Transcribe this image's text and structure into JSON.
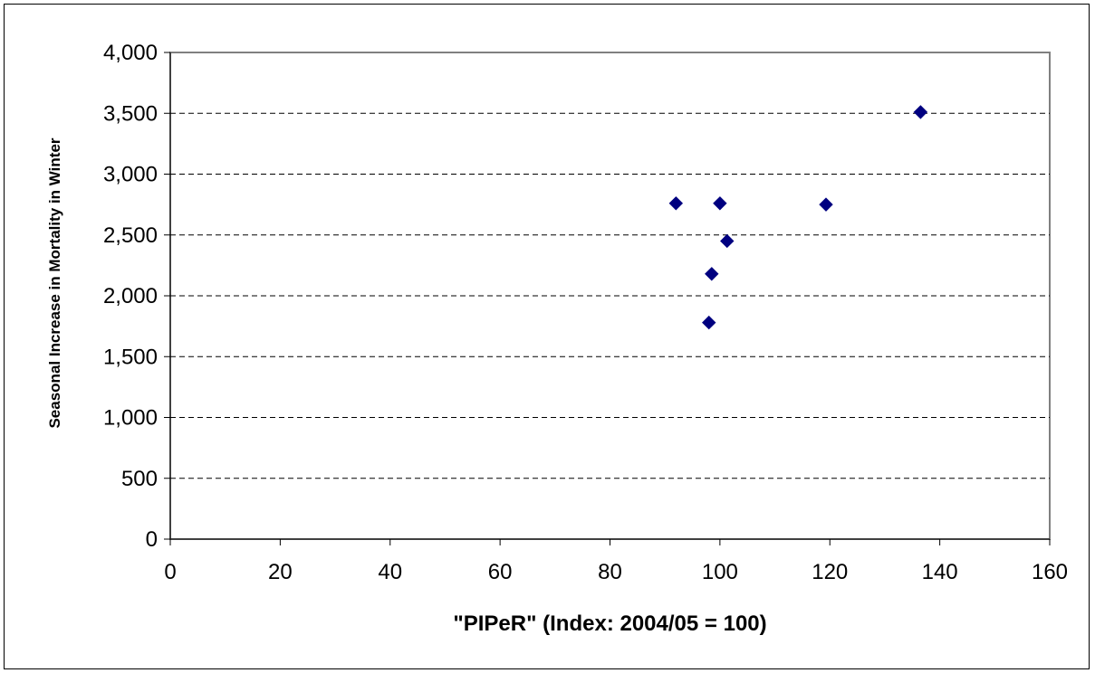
{
  "chart_data": {
    "type": "scatter",
    "title": "",
    "xlabel": "\"PIPeR\" (Index: 2004/05 = 100)",
    "ylabel": "Seasonal Increase in Mortality in Winter",
    "xlim": [
      0,
      160
    ],
    "ylim": [
      0,
      4000
    ],
    "x_ticks": [
      0,
      20,
      40,
      60,
      80,
      100,
      120,
      140,
      160
    ],
    "y_ticks": [
      0,
      500,
      1000,
      1500,
      2000,
      2500,
      3000,
      3500,
      4000
    ],
    "x_tick_labels": [
      "0",
      "20",
      "40",
      "60",
      "80",
      "100",
      "120",
      "140",
      "160"
    ],
    "y_tick_labels": [
      "0",
      "500",
      "1,000",
      "1,500",
      "2,000",
      "2,500",
      "3,000",
      "3,500",
      "4,000"
    ],
    "grid": "horizontal dashed",
    "legend": "none",
    "series": [
      {
        "marker": "diamond",
        "color": "#000080",
        "points": [
          {
            "x": 92,
            "y": 2760
          },
          {
            "x": 100,
            "y": 2760
          },
          {
            "x": 119.3,
            "y": 2750
          },
          {
            "x": 136.5,
            "y": 3510
          },
          {
            "x": 101.3,
            "y": 2450
          },
          {
            "x": 98.5,
            "y": 2180
          },
          {
            "x": 98,
            "y": 1780
          }
        ]
      }
    ]
  },
  "colors": {
    "plot_border": "#808080",
    "grid": "#000000",
    "axis": "#000000",
    "marker": "#000080"
  }
}
